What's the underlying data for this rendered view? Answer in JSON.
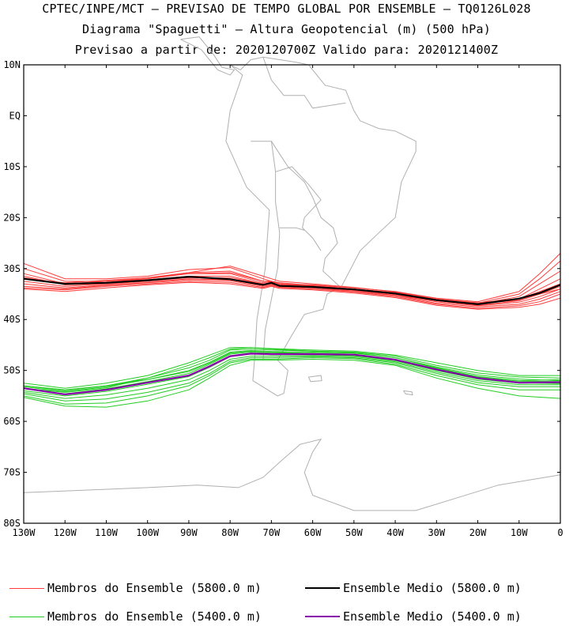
{
  "title": {
    "line1": "CPTEC/INPE/MCT – PREVISAO DE TEMPO GLOBAL POR ENSEMBLE – TQ0126L028",
    "line2": "Diagrama \"Spaguetti\" – Altura Geopotencial (m) (500 hPa)",
    "line3": "Previsao a partir de: 2020120700Z  Valido para: 2020121400Z"
  },
  "colors": {
    "members_5800": "#ff3b3b",
    "mean_5800": "#000000",
    "members_5400": "#22cc22",
    "mean_5400": "#8800aa",
    "coast": "#b0b0b0"
  },
  "legend": {
    "members_5800": "Membros do Ensemble (5800.0 m)",
    "mean_5800": "Ensemble Medio (5800.0 m)",
    "members_5400": "Membros do Ensemble (5400.0 m)",
    "mean_5400": "Ensemble Medio (5400.0 m)"
  },
  "chart_data": {
    "type": "line",
    "xlim": [
      -130,
      0
    ],
    "ylim": [
      -80,
      10
    ],
    "x_ticks": [
      "130W",
      "120W",
      "110W",
      "100W",
      "90W",
      "80W",
      "70W",
      "60W",
      "50W",
      "40W",
      "30W",
      "20W",
      "10W",
      "0"
    ],
    "y_ticks": [
      "10N",
      "EQ",
      "10S",
      "20S",
      "30S",
      "40S",
      "50S",
      "60S",
      "70S",
      "80S"
    ],
    "mean_5800": {
      "lon": [
        -130,
        -120,
        -110,
        -100,
        -90,
        -80,
        -72,
        -70,
        -68,
        -60,
        -50,
        -40,
        -30,
        -20,
        -10,
        -5,
        0
      ],
      "lat": [
        -32,
        -33,
        -32.8,
        -32.3,
        -31.6,
        -32.1,
        -33.2,
        -32.8,
        -33.4,
        -33.6,
        -34.1,
        -34.9,
        -36.2,
        -37,
        -35.9,
        -34.8,
        -33.2
      ]
    },
    "members_5800": [
      [
        -29,
        -32,
        -32,
        -31.5,
        -30.2,
        -29.8,
        -32,
        -32.5,
        -33,
        -33.2,
        -33.8,
        -34.5,
        -35.8,
        -36.5,
        -34.5,
        -31,
        -27
      ],
      [
        -30,
        -32.5,
        -32.5,
        -32,
        -30.8,
        -30.5,
        -32.5,
        -32.5,
        -32.8,
        -33.3,
        -34,
        -34.8,
        -36,
        -36.8,
        -35,
        -32,
        -28.5
      ],
      [
        -31,
        -33,
        -32.7,
        -32,
        -31,
        -31,
        -32.8,
        -32.6,
        -33,
        -33.5,
        -34,
        -34.7,
        -36,
        -37,
        -35.5,
        -33,
        -30.5
      ],
      [
        -31.5,
        -33.2,
        -32.9,
        -32.2,
        -31.5,
        -31.5,
        -33,
        -32.8,
        -33.2,
        -33.5,
        -34.2,
        -35,
        -36.3,
        -37,
        -36,
        -34,
        -32
      ],
      [
        -32.5,
        -33.5,
        -33,
        -32.5,
        -31.8,
        -31.8,
        -33,
        -33,
        -33.3,
        -33.6,
        -34.2,
        -35,
        -36.5,
        -37.2,
        -36.3,
        -35,
        -33.5
      ],
      [
        -33,
        -33.8,
        -33.2,
        -32.7,
        -32,
        -32.2,
        -33.3,
        -33,
        -33.5,
        -33.8,
        -34.3,
        -35.2,
        -36.5,
        -37.3,
        -36.6,
        -35.5,
        -34
      ],
      [
        -33.5,
        -34,
        -33.3,
        -32.8,
        -32.2,
        -32.4,
        -33.5,
        -33.2,
        -33.6,
        -33.8,
        -34.5,
        -35.3,
        -36.8,
        -37.5,
        -37,
        -36,
        -34.5
      ],
      [
        -33.8,
        -34.2,
        -33.5,
        -33,
        -32.5,
        -32.7,
        -33.7,
        -33.3,
        -33.7,
        -34,
        -34.6,
        -35.5,
        -37,
        -37.8,
        -37.3,
        -36.5,
        -35
      ],
      [
        -34,
        -34.5,
        -33.8,
        -33.2,
        -32.7,
        -33,
        -33.9,
        -33.5,
        -33.9,
        -34.2,
        -34.8,
        -35.7,
        -37.2,
        -38,
        -37.6,
        -37,
        -35.8
      ],
      [
        -32,
        -32.8,
        -32.3,
        -31.8,
        -30.8,
        -29.5,
        -31.5,
        -32,
        -32.5,
        -33,
        -33.7,
        -34.6,
        -36,
        -36.7,
        -36,
        -34.5,
        -33
      ],
      [
        -31.8,
        -33,
        -32.5,
        -31.8,
        -31,
        -30.8,
        -32.5,
        -32.5,
        -33,
        -33.4,
        -34,
        -34.9,
        -36.2,
        -36.9,
        -36.2,
        -35,
        -34
      ]
    ],
    "mean_5400": {
      "lon": [
        -130,
        -120,
        -110,
        -100,
        -90,
        -85,
        -80,
        -75,
        -70,
        -60,
        -50,
        -40,
        -30,
        -20,
        -10,
        0
      ],
      "lat": [
        -53.5,
        -54.7,
        -53.8,
        -52.4,
        -51,
        -49.2,
        -47.2,
        -46.7,
        -46.8,
        -46.8,
        -46.9,
        -47.9,
        -49.8,
        -51.5,
        -52.4,
        -52.3
      ]
    },
    "members_5400": [
      [
        -52.5,
        -53.5,
        -52.5,
        -51,
        -48.5,
        -47,
        -45.5,
        -45.5,
        -45.7,
        -46,
        -46.2,
        -47,
        -48.5,
        -50,
        -51,
        -51
      ],
      [
        -53,
        -54,
        -53,
        -51.5,
        -49.5,
        -48,
        -46,
        -45.8,
        -46,
        -46.2,
        -46.4,
        -47.2,
        -49,
        -50.5,
        -51.3,
        -51.5
      ],
      [
        -53.2,
        -54.2,
        -53.2,
        -51.8,
        -50,
        -48.4,
        -46.4,
        -46.1,
        -46.3,
        -46.4,
        -46.6,
        -47.5,
        -49.3,
        -50.9,
        -51.7,
        -52
      ],
      [
        -53.6,
        -54.6,
        -53.6,
        -52.2,
        -50.6,
        -48.8,
        -46.8,
        -46.4,
        -46.6,
        -46.6,
        -46.8,
        -47.8,
        -49.6,
        -51.3,
        -52.1,
        -52.2
      ],
      [
        -54,
        -55,
        -54.1,
        -52.7,
        -51.2,
        -49.4,
        -47.3,
        -46.8,
        -46.9,
        -46.9,
        -47.1,
        -48.1,
        -50,
        -51.7,
        -52.5,
        -52.5
      ],
      [
        -54.3,
        -55.5,
        -54.8,
        -53.5,
        -51.8,
        -50,
        -47.8,
        -47.2,
        -47.2,
        -47.1,
        -47.3,
        -48.3,
        -50.3,
        -52,
        -52.8,
        -52.8
      ],
      [
        -54.6,
        -56,
        -55.6,
        -54.3,
        -52.5,
        -50.6,
        -48.2,
        -47.5,
        -47.5,
        -47.3,
        -47.5,
        -48.5,
        -50.6,
        -52.4,
        -53.2,
        -53.2
      ],
      [
        -55,
        -56.6,
        -56.4,
        -55,
        -53,
        -51,
        -48.5,
        -47.8,
        -47.8,
        -47.5,
        -47.7,
        -48.8,
        -51,
        -52.8,
        -53.8,
        -53.8
      ],
      [
        -55.3,
        -57,
        -57.2,
        -56,
        -53.8,
        -51.5,
        -49,
        -48,
        -48,
        -47.8,
        -48,
        -49,
        -51.5,
        -53.5,
        -55,
        -55.5
      ],
      [
        -53.5,
        -54.3,
        -53.4,
        -51.5,
        -49,
        -47.5,
        -45.8,
        -45.5,
        -45.8,
        -46.2,
        -46.5,
        -47.5,
        -49.5,
        -51.2,
        -52,
        -51.8
      ],
      [
        -53,
        -53.8,
        -53,
        -51.8,
        -50.2,
        -48.6,
        -46.6,
        -46.2,
        -46.4,
        -46.7,
        -47,
        -48,
        -49.8,
        -51.6,
        -52.4,
        -52.6
      ]
    ]
  }
}
